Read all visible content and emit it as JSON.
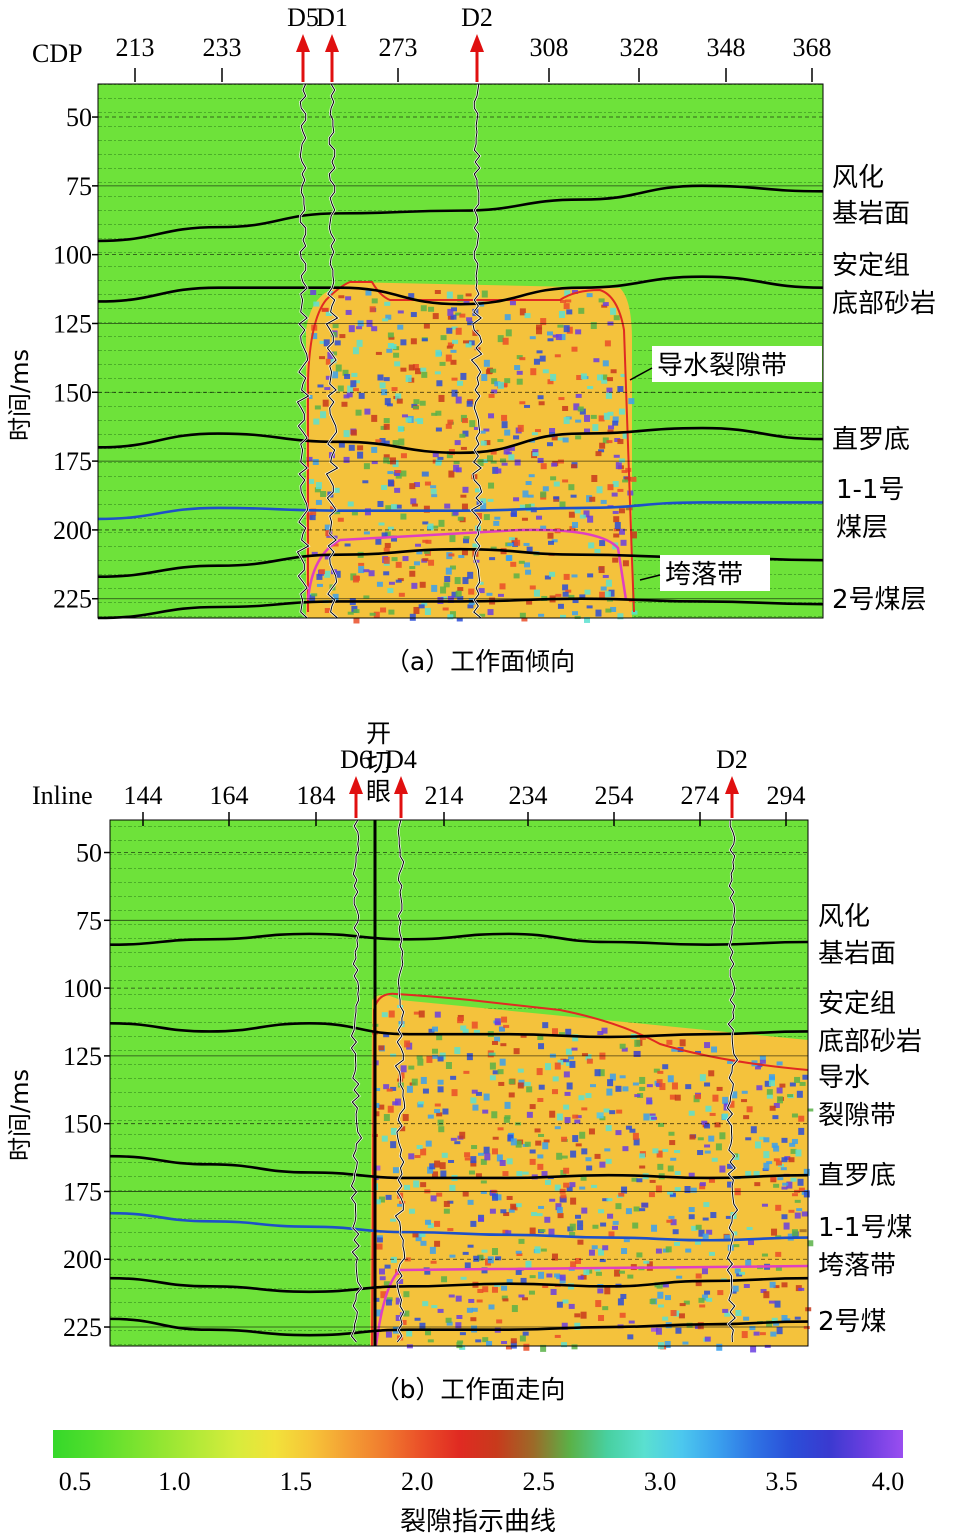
{
  "chart_data": [
    {
      "type": "heatmap",
      "panel_label": "（a）工作面倾向",
      "x_axis_name": "CDP",
      "x_ticks": [
        213,
        233,
        273,
        308,
        328,
        348,
        368
      ],
      "y_ticks": [
        50,
        75,
        100,
        125,
        150,
        175,
        200,
        225
      ],
      "ylabel": "时间/ms",
      "ylim": [
        38,
        232
      ],
      "well_markers": [
        {
          "label": "D5",
          "x": 251
        },
        {
          "label": "D1",
          "x": 258
        },
        {
          "label": "D2",
          "x": 291
        }
      ],
      "horizon_labels": [
        "风化",
        "基岩面",
        "安定组",
        "底部砂岩",
        "导水裂隙带",
        "直罗底",
        "1-1号",
        "煤层",
        "垮落带",
        "2号煤层"
      ],
      "horizons": [
        {
          "name": "风化基岩面",
          "color": "#000000",
          "x": [
            208,
            240,
            270,
            300,
            330,
            360,
            372
          ],
          "y": [
            95,
            90,
            85,
            84,
            80,
            75,
            77
          ]
        },
        {
          "name": "安定组底部砂岩",
          "color": "#000000",
          "x": [
            208,
            240,
            270,
            300,
            330,
            360,
            372
          ],
          "y": [
            117,
            112,
            112,
            118,
            112,
            108,
            112
          ]
        },
        {
          "name": "直罗底",
          "color": "#000000",
          "x": [
            208,
            240,
            270,
            300,
            330,
            360,
            372
          ],
          "y": [
            170,
            165,
            168,
            172,
            165,
            163,
            167
          ]
        },
        {
          "name": "1-1号煤层",
          "color": "#1e50c8",
          "x": [
            208,
            240,
            270,
            300,
            330,
            360,
            372
          ],
          "y": [
            196,
            192,
            193,
            193,
            192,
            190,
            190
          ]
        },
        {
          "name": "2号煤层顶",
          "color": "#000000",
          "x": [
            208,
            240,
            270,
            300,
            330,
            360,
            372
          ],
          "y": [
            217,
            213,
            209,
            207,
            209,
            210,
            211
          ]
        },
        {
          "name": "2号煤层",
          "color": "#000000",
          "x": [
            208,
            240,
            270,
            300,
            330,
            360,
            372
          ],
          "y": [
            232,
            228,
            226,
            226,
            225,
            226,
            227
          ]
        }
      ]
    },
    {
      "type": "heatmap",
      "panel_label": "（b）工作面走向",
      "x_axis_name": "Inline",
      "x_ticks": [
        144,
        164,
        184,
        214,
        234,
        254,
        274,
        294
      ],
      "y_ticks": [
        50,
        75,
        100,
        125,
        150,
        175,
        200,
        225
      ],
      "ylabel": "时间/ms",
      "ylim": [
        38,
        232
      ],
      "well_markers": [
        {
          "label": "D6",
          "x": 193
        },
        {
          "label": "D4",
          "x": 204
        },
        {
          "label": "D2",
          "x": 277
        }
      ],
      "cut_label": [
        "开",
        "切",
        "眼"
      ],
      "horizon_labels": [
        "风化",
        "基岩面",
        "安定组",
        "底部砂岩",
        "导水",
        "裂隙带",
        "直罗底",
        "1-1号煤",
        "垮落带",
        "2号煤"
      ],
      "horizons": [
        {
          "name": "风化基岩面",
          "color": "#000000",
          "x": [
            137,
            160,
            180,
            200,
            230,
            260,
            290,
            300
          ],
          "y": [
            84,
            82,
            80,
            82,
            80,
            83,
            84,
            83
          ]
        },
        {
          "name": "安定组底部砂岩",
          "color": "#000000",
          "x": [
            137,
            160,
            180,
            200,
            230,
            260,
            290,
            300
          ],
          "y": [
            113,
            116,
            113,
            117,
            117,
            118,
            117,
            116
          ]
        },
        {
          "name": "直罗底",
          "color": "#000000",
          "x": [
            137,
            160,
            180,
            200,
            230,
            260,
            290,
            300
          ],
          "y": [
            162,
            165,
            168,
            170,
            170,
            169,
            170,
            169
          ]
        },
        {
          "name": "1-1号煤",
          "color": "#1e50c8",
          "x": [
            137,
            160,
            180,
            200,
            230,
            260,
            290,
            300
          ],
          "y": [
            183,
            186,
            188,
            190,
            191,
            192,
            193,
            192
          ]
        },
        {
          "name": "2号煤顶",
          "color": "#000000",
          "x": [
            137,
            160,
            180,
            200,
            230,
            260,
            290,
            300
          ],
          "y": [
            207,
            210,
            212,
            210,
            209,
            210,
            208,
            207
          ]
        },
        {
          "name": "2号煤",
          "color": "#000000",
          "x": [
            137,
            160,
            180,
            200,
            230,
            260,
            290,
            300
          ],
          "y": [
            222,
            226,
            228,
            226,
            226,
            225,
            224,
            223
          ]
        }
      ]
    }
  ],
  "colorbar": {
    "title": "裂隙指示曲线",
    "ticks": [
      "0.5",
      "1.0",
      "1.5",
      "2.0",
      "2.5",
      "3.0",
      "3.5",
      "4.0"
    ],
    "range": [
      0.5,
      4.0
    ],
    "colors": [
      "#35d82a",
      "#4fde2c",
      "#72e22e",
      "#95e632",
      "#b7ea38",
      "#d8ec3c",
      "#f2e23a",
      "#f6c438",
      "#f49e34",
      "#f07a2e",
      "#ea4e28",
      "#e02a22",
      "#c83a1c",
      "#9c6a28",
      "#5ab248",
      "#48d0a0",
      "#5ae0d0",
      "#4cc8ee",
      "#3aa0ee",
      "#2e72e4",
      "#2a4ed8",
      "#3a3ad0",
      "#6a3ee0",
      "#9a4ef0"
    ]
  }
}
